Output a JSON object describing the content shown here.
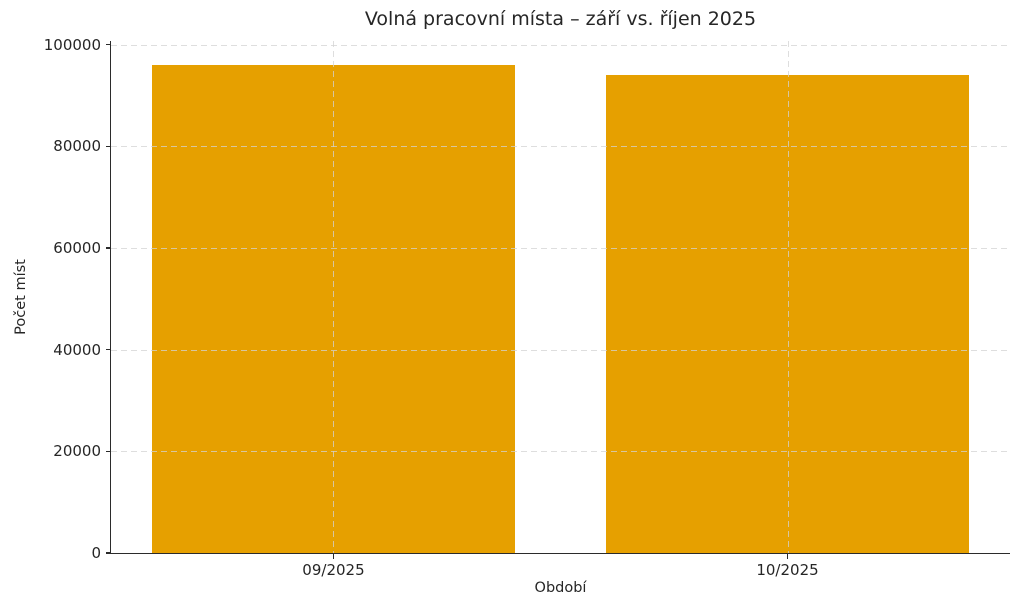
{
  "chart_data": {
    "type": "bar",
    "title": "Volná pracovní místa – září vs. říjen 2025",
    "xlabel": "Období",
    "ylabel": "Počet míst",
    "categories": [
      "09/2025",
      "10/2025"
    ],
    "values": [
      95900,
      94000
    ],
    "yticks": [
      0,
      20000,
      40000,
      60000,
      80000,
      100000
    ],
    "ylim": [
      0,
      100700
    ],
    "bar_width_ratio": 0.8,
    "grid": "dashed, horizontal and vertical, drawn above bars",
    "legend": "none",
    "colors": {
      "bar": "#E6A000",
      "grid": "#d3d3d3",
      "text": "#262626",
      "spine": "#2b2b2b"
    }
  }
}
